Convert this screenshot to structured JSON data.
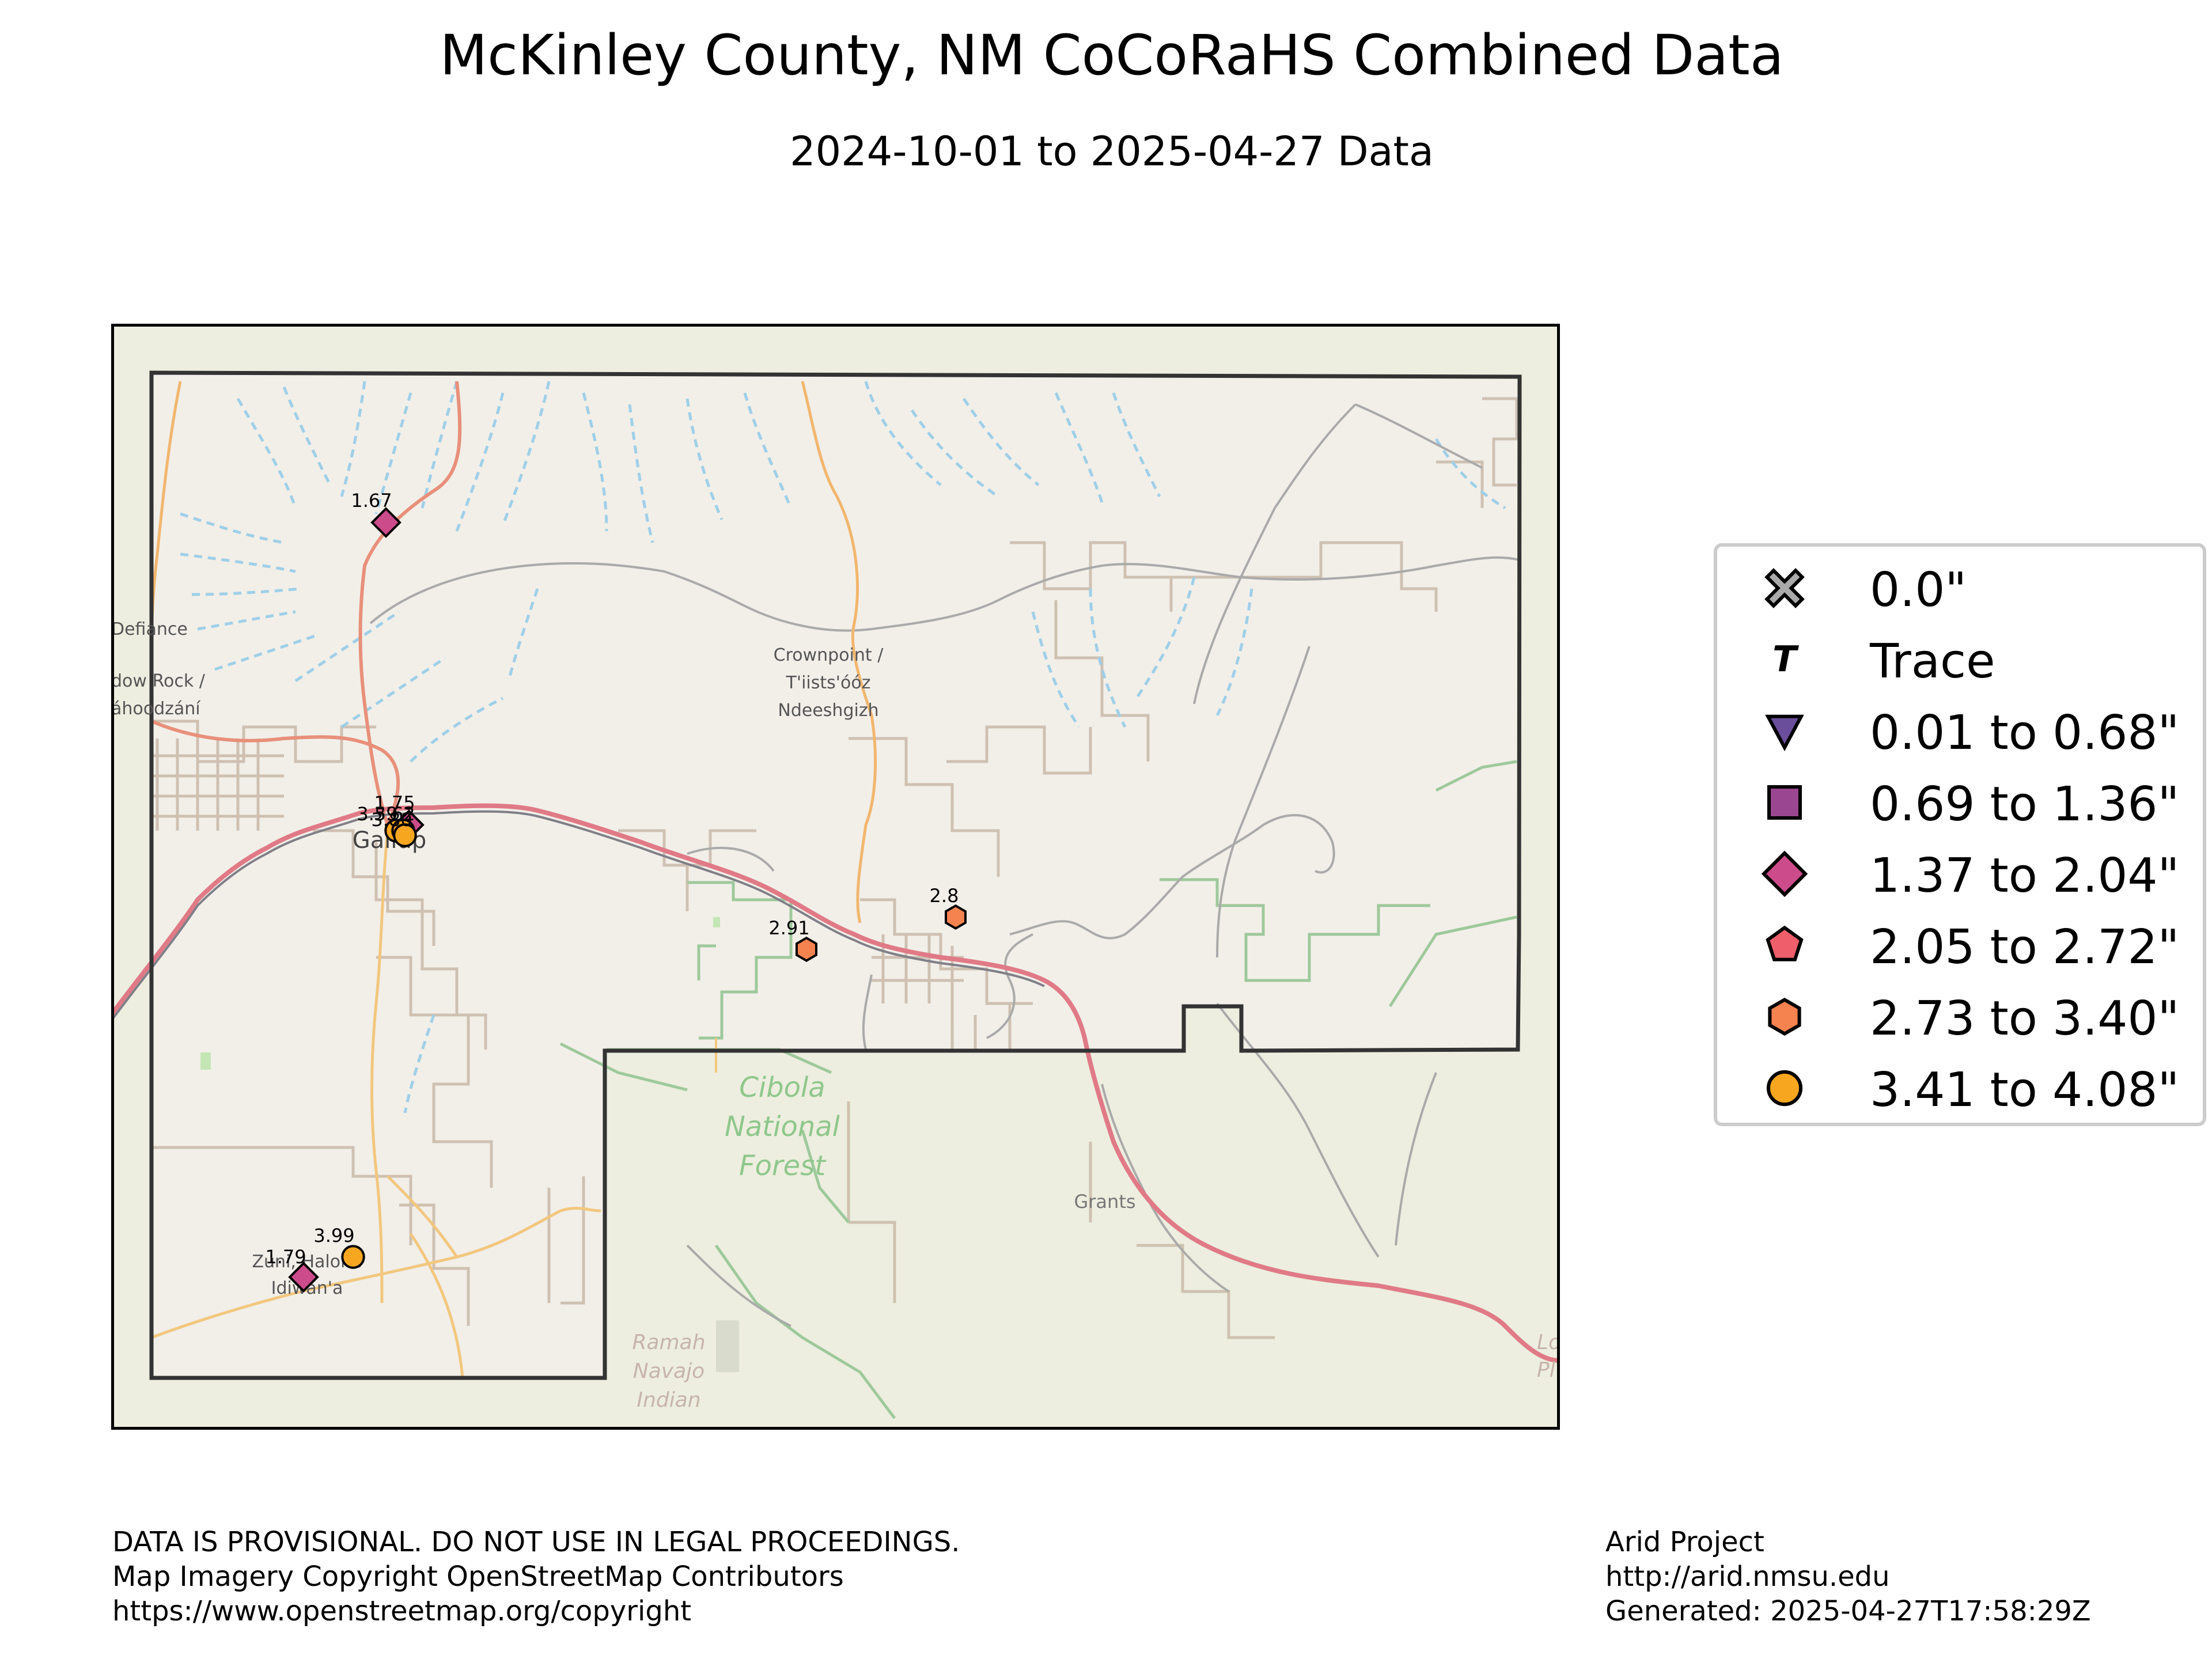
{
  "title": "McKinley County, NM CoCoRaHS Combined Data",
  "subtitle": "2024-10-01 to 2025-04-27 Data",
  "map": {
    "place_labels": [
      {
        "key": "defiance",
        "lines": [
          "Defiance"
        ]
      },
      {
        "key": "window-rock",
        "lines": [
          "dow Rock /",
          "áhoodzání"
        ]
      },
      {
        "key": "crownpoint",
        "lines": [
          "Crownpoint /",
          "T'iists'óóz",
          "Ndeeshgizh"
        ]
      },
      {
        "key": "gallup",
        "lines": [
          "Gallup"
        ]
      },
      {
        "key": "zuni",
        "lines": [
          "Zuni, Halona",
          "Idiwan'a"
        ]
      },
      {
        "key": "cibola",
        "lines": [
          "Cibola",
          "National",
          "Forest"
        ]
      },
      {
        "key": "grants",
        "lines": [
          "Grants"
        ]
      },
      {
        "key": "ramah",
        "lines": [
          "Ramah",
          "Navajo",
          "Indian"
        ]
      },
      {
        "key": "edge",
        "lines": [
          "Lo",
          "Pl"
        ]
      }
    ],
    "stations": [
      {
        "value": "1.67",
        "class": "1.37 to 2.04\"",
        "symbol": "diamond",
        "color": "#cc4c8b"
      },
      {
        "value": "1.75",
        "class": "1.37 to 2.04\"",
        "symbol": "diamond",
        "color": "#cc4c8b"
      },
      {
        "value": "3.59",
        "class": "3.41 to 4.08\"",
        "symbol": "circle",
        "color": "#f6a71f"
      },
      {
        "value": "3.62",
        "class": "3.41 to 4.08\"",
        "symbol": "circle",
        "color": "#f6a71f"
      },
      {
        "value": "3.80",
        "class": "3.41 to 4.08\"",
        "symbol": "circle",
        "color": "#f6a71f"
      },
      {
        "value": "2.91",
        "class": "2.73 to 3.40\"",
        "symbol": "hexagon",
        "color": "#f4834f"
      },
      {
        "value": "2.8",
        "class": "2.73 to 3.40\"",
        "symbol": "hexagon",
        "color": "#f4834f"
      },
      {
        "value": "3.99",
        "class": "3.41 to 4.08\"",
        "symbol": "circle",
        "color": "#f6a71f"
      },
      {
        "value": "1.79",
        "class": "1.37 to 2.04\"",
        "symbol": "diamond",
        "color": "#cc4c8b"
      }
    ]
  },
  "legend": {
    "items": [
      {
        "label": "0.0\"",
        "symbol": "x",
        "color": "#aaaaaa"
      },
      {
        "label": "Trace",
        "symbol": "T",
        "color": "#000000"
      },
      {
        "label": "0.01 to 0.68\"",
        "symbol": "triangle-down",
        "color": "#6b4e9b"
      },
      {
        "label": "0.69 to 1.36\"",
        "symbol": "square",
        "color": "#9a4690"
      },
      {
        "label": "1.37 to 2.04\"",
        "symbol": "diamond",
        "color": "#cc4c8b"
      },
      {
        "label": "2.05 to 2.72\"",
        "symbol": "pentagon",
        "color": "#ef5f6b"
      },
      {
        "label": "2.73 to 3.40\"",
        "symbol": "hexagon",
        "color": "#f4834f"
      },
      {
        "label": "3.41 to 4.08\"",
        "symbol": "circle",
        "color": "#f6a71f"
      }
    ]
  },
  "footer": {
    "left": [
      "DATA IS PROVISIONAL. DO NOT USE IN LEGAL PROCEEDINGS.",
      "Map Imagery Copyright OpenStreetMap Contributors",
      "https://www.openstreetmap.org/copyright"
    ],
    "right": [
      "Arid Project",
      "http://arid.nmsu.edu",
      "Generated: 2025-04-27T17:58:29Z"
    ]
  }
}
